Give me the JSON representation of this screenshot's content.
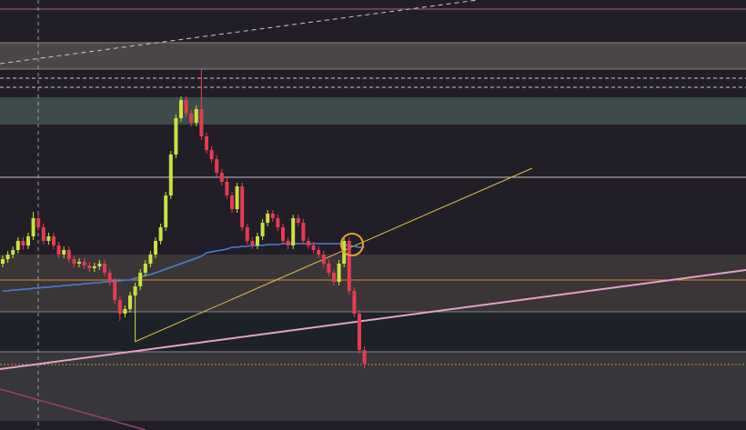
{
  "chart_data": {
    "type": "candlestick",
    "ylim": [
      0,
      473
    ],
    "up_color": "#c9e23f",
    "down_color": "#e83a52",
    "ma_color": "#4a7fd6",
    "open": [
      183,
      188,
      193,
      198,
      208,
      203,
      213,
      233,
      223,
      208,
      213,
      203,
      193,
      198,
      188,
      183,
      185,
      181,
      178,
      180,
      183,
      173,
      163,
      143,
      128,
      133,
      148,
      158,
      173,
      183,
      193,
      208,
      223,
      258,
      303,
      343,
      363,
      348,
      338,
      353,
      323,
      308,
      298,
      283,
      273,
      258,
      243,
      268,
      223,
      208,
      203,
      213,
      228,
      238,
      233,
      223,
      208,
      203,
      233,
      228,
      208,
      203,
      198,
      193,
      183,
      173,
      163,
      183,
      208,
      153,
      128,
      88
    ],
    "high": [
      192,
      197,
      202,
      212,
      212,
      217,
      240,
      237,
      227,
      217,
      217,
      207,
      202,
      202,
      192,
      189,
      189,
      185,
      184,
      187,
      187,
      177,
      167,
      147,
      137,
      152,
      162,
      177,
      187,
      197,
      212,
      227,
      262,
      307,
      347,
      367,
      367,
      352,
      357,
      398,
      327,
      312,
      302,
      287,
      277,
      262,
      272,
      272,
      227,
      212,
      217,
      232,
      242,
      242,
      237,
      227,
      212,
      237,
      237,
      232,
      212,
      207,
      202,
      197,
      187,
      177,
      187,
      212,
      212,
      157,
      132,
      92
    ],
    "low": [
      179,
      184,
      189,
      194,
      199,
      199,
      209,
      219,
      204,
      204,
      199,
      189,
      189,
      184,
      179,
      179,
      177,
      174,
      174,
      176,
      169,
      159,
      139,
      120,
      124,
      129,
      98,
      154,
      169,
      179,
      189,
      204,
      219,
      254,
      299,
      339,
      344,
      334,
      334,
      319,
      304,
      294,
      279,
      269,
      254,
      239,
      239,
      219,
      204,
      199,
      199,
      209,
      224,
      229,
      219,
      204,
      199,
      199,
      224,
      204,
      199,
      194,
      189,
      179,
      169,
      159,
      159,
      179,
      149,
      124,
      84,
      68
    ],
    "close": [
      188,
      193,
      198,
      208,
      203,
      213,
      233,
      223,
      208,
      213,
      203,
      193,
      198,
      188,
      183,
      185,
      181,
      178,
      180,
      183,
      173,
      163,
      143,
      128,
      133,
      148,
      158,
      173,
      183,
      193,
      208,
      223,
      258,
      303,
      343,
      363,
      348,
      338,
      353,
      323,
      308,
      298,
      283,
      273,
      258,
      243,
      268,
      223,
      208,
      203,
      213,
      228,
      238,
      233,
      223,
      208,
      203,
      233,
      228,
      208,
      203,
      198,
      193,
      183,
      173,
      163,
      183,
      208,
      153,
      128,
      88,
      73
    ],
    "ma": [
      153,
      153,
      154,
      154,
      155,
      155,
      156,
      156,
      157,
      157,
      158,
      158,
      159,
      159,
      160,
      160,
      161,
      161,
      162,
      162,
      163,
      163,
      164,
      164,
      165,
      165,
      167,
      168,
      170,
      171,
      173,
      175,
      177,
      179,
      181,
      183,
      185,
      187,
      189,
      191,
      195,
      196,
      197,
      198,
      199,
      201,
      201,
      202,
      202,
      203,
      203,
      203,
      204,
      204,
      204,
      205,
      205,
      205,
      205,
      205,
      205,
      205,
      205,
      205,
      205,
      205,
      205,
      204,
      203,
      202,
      201,
      201
    ]
  }
}
